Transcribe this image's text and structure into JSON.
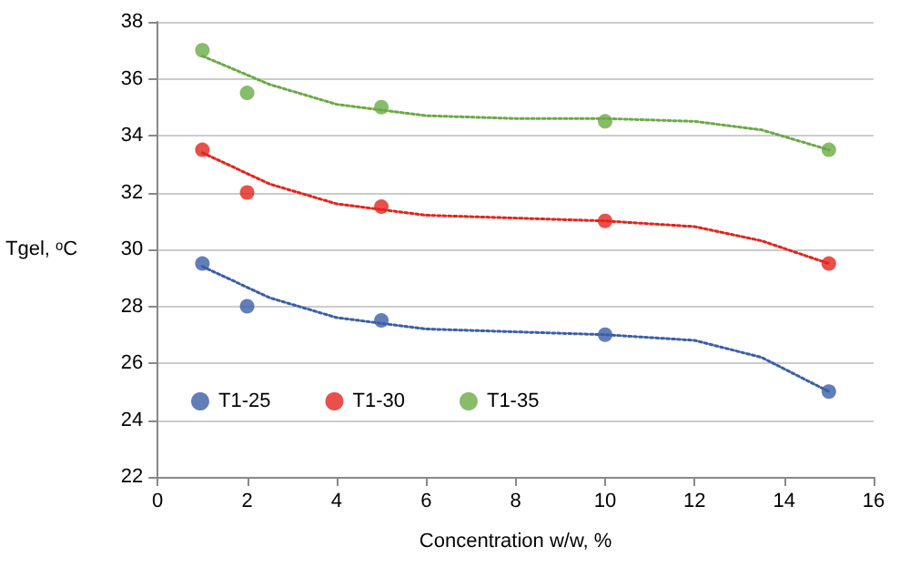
{
  "chart_data": {
    "type": "scatter",
    "xlabel": "Concentration w/w, %",
    "ylabel": "Tgel, ᵒC",
    "x": [
      1,
      2,
      5,
      10,
      15
    ],
    "series": [
      {
        "name": "T1-25",
        "color": "#3b5ea8",
        "values": [
          29.5,
          28,
          27.5,
          27,
          25
        ]
      },
      {
        "name": "T1-30",
        "color": "#e3241b",
        "values": [
          33.5,
          32,
          31.5,
          31,
          29.5
        ]
      },
      {
        "name": "T1-35",
        "color": "#6aaa45",
        "values": [
          37,
          35.5,
          35,
          34.5,
          33.5
        ]
      },
      {
        "type": "line",
        "color": "#3b5ea8",
        "line_style": "dotted",
        "marker": "none",
        "x": [
          1,
          2.5,
          4,
          6,
          8,
          10,
          12,
          13.5,
          15
        ],
        "values": [
          29.4,
          28.3,
          27.6,
          27.2,
          27.1,
          27,
          26.8,
          26.2,
          25
        ]
      },
      {
        "type": "line",
        "color": "#e3241b",
        "line_style": "dotted",
        "marker": "none",
        "x": [
          1,
          2.5,
          4,
          6,
          8,
          10,
          12,
          13.5,
          15
        ],
        "values": [
          33.4,
          32.3,
          31.6,
          31.2,
          31.1,
          31,
          30.8,
          30.3,
          29.5
        ]
      },
      {
        "type": "line",
        "color": "#6aaa45",
        "line_style": "dotted",
        "marker": "none",
        "x": [
          1,
          2.5,
          4,
          6,
          8,
          10,
          12,
          13.5,
          15
        ],
        "values": [
          36.8,
          35.8,
          35.1,
          34.7,
          34.6,
          34.6,
          34.5,
          34.2,
          33.5
        ]
      }
    ],
    "xlim": [
      0,
      16
    ],
    "xticks": [
      0,
      2,
      4,
      6,
      8,
      10,
      12,
      14,
      16
    ],
    "ylim": [
      22,
      38
    ],
    "yticks": [
      22,
      24,
      26,
      28,
      30,
      32,
      34,
      36,
      38
    ],
    "grid": "y",
    "legend": "bottom left",
    "marker": "circle"
  }
}
